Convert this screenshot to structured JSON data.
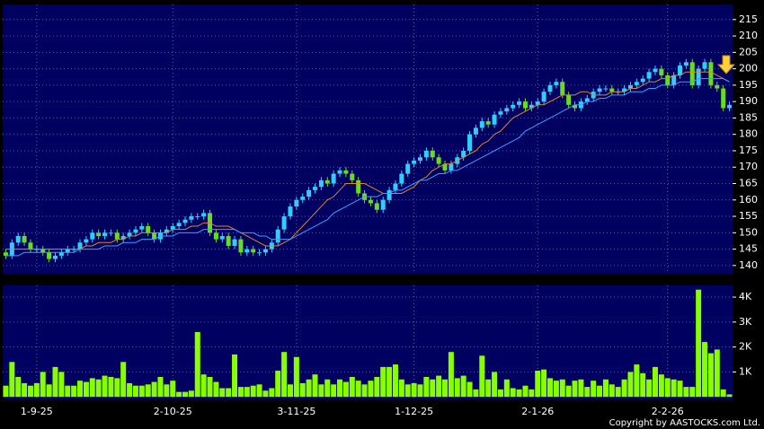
{
  "chart_data": {
    "type": "candlestick",
    "categories": [
      null,
      null,
      null,
      null,
      null,
      "1-9-25",
      null,
      null,
      null,
      null,
      null,
      null,
      null,
      null,
      null,
      null,
      null,
      null,
      null,
      null,
      null,
      null,
      null,
      null,
      null,
      null,
      null,
      "2-10-25",
      null,
      null,
      null,
      null,
      null,
      null,
      null,
      null,
      null,
      null,
      null,
      null,
      null,
      null,
      null,
      null,
      null,
      null,
      null,
      "3-11-25",
      null,
      null,
      null,
      null,
      null,
      null,
      null,
      null,
      null,
      null,
      null,
      null,
      null,
      null,
      null,
      null,
      null,
      null,
      "1-12-25",
      null,
      null,
      null,
      null,
      null,
      null,
      null,
      null,
      null,
      null,
      null,
      null,
      null,
      null,
      null,
      null,
      null,
      null,
      null,
      "2-1-26",
      null,
      null,
      null,
      null,
      null,
      null,
      null,
      null,
      null,
      null,
      null,
      null,
      null,
      null,
      null,
      null,
      null,
      null,
      null,
      null,
      "2-2-26",
      null,
      null,
      null,
      null,
      null,
      null,
      null,
      null,
      null,
      null
    ],
    "open": [
      144,
      143,
      147,
      149,
      147,
      145,
      145,
      144,
      142,
      143,
      144,
      145,
      145,
      147,
      148,
      150,
      149,
      150,
      150,
      148,
      149,
      150,
      151,
      152,
      150,
      148,
      150,
      151,
      152,
      153,
      154,
      155,
      155,
      156,
      150,
      148,
      149,
      146,
      148,
      144,
      145,
      144,
      144,
      145,
      147,
      151,
      155,
      158,
      160,
      161,
      163,
      164,
      166,
      165,
      168,
      169,
      168,
      166,
      162,
      160,
      159,
      157,
      160,
      163,
      165,
      168,
      171,
      172,
      173,
      175,
      173,
      171,
      169,
      171,
      173,
      175,
      180,
      182,
      184,
      183,
      186,
      187,
      188,
      189,
      190,
      188,
      189,
      190,
      193,
      195,
      196,
      192,
      189,
      188,
      190,
      191,
      193,
      194,
      194,
      193,
      193,
      194,
      195,
      196,
      197,
      199,
      200,
      198,
      195,
      198,
      201,
      202,
      195,
      200,
      202,
      195,
      194,
      188
    ],
    "high": [
      145,
      148,
      150,
      150,
      148,
      146,
      146,
      145,
      144,
      145,
      146,
      146,
      148,
      149,
      151,
      151,
      151,
      151,
      151,
      150,
      151,
      152,
      153,
      153,
      151,
      151,
      152,
      153,
      154,
      155,
      156,
      156,
      157,
      157,
      151,
      150,
      150,
      149,
      149,
      146,
      146,
      145,
      146,
      148,
      152,
      156,
      159,
      161,
      162,
      164,
      165,
      167,
      167,
      169,
      170,
      170,
      169,
      167,
      163,
      161,
      160,
      161,
      164,
      166,
      169,
      172,
      173,
      174,
      176,
      176,
      174,
      172,
      172,
      174,
      176,
      181,
      183,
      185,
      185,
      187,
      188,
      189,
      190,
      191,
      191,
      190,
      191,
      194,
      196,
      197,
      197,
      193,
      190,
      191,
      192,
      194,
      195,
      195,
      195,
      194,
      195,
      196,
      197,
      198,
      200,
      201,
      201,
      199,
      199,
      202,
      203,
      203,
      201,
      203,
      203,
      196,
      195,
      190
    ],
    "low": [
      142,
      142,
      146,
      146,
      144,
      144,
      143,
      141,
      141,
      142,
      143,
      144,
      144,
      146,
      147,
      148,
      148,
      149,
      147,
      147,
      148,
      149,
      150,
      149,
      147,
      147,
      149,
      150,
      151,
      152,
      153,
      154,
      154,
      149,
      147,
      147,
      145,
      145,
      143,
      143,
      143,
      143,
      143,
      144,
      146,
      150,
      154,
      157,
      159,
      160,
      162,
      163,
      164,
      164,
      167,
      167,
      165,
      161,
      159,
      158,
      156,
      156,
      159,
      162,
      164,
      167,
      170,
      171,
      172,
      172,
      170,
      168,
      168,
      170,
      172,
      174,
      179,
      181,
      182,
      182,
      185,
      186,
      187,
      188,
      187,
      187,
      188,
      189,
      192,
      194,
      191,
      188,
      187,
      187,
      189,
      190,
      192,
      193,
      192,
      192,
      192,
      193,
      194,
      195,
      196,
      198,
      197,
      194,
      194,
      197,
      200,
      194,
      194,
      199,
      194,
      193,
      187,
      187
    ],
    "close": [
      143,
      147,
      149,
      147,
      145,
      145,
      144,
      142,
      143,
      144,
      145,
      145,
      147,
      148,
      150,
      149,
      150,
      150,
      148,
      149,
      150,
      151,
      152,
      150,
      148,
      150,
      151,
      152,
      153,
      154,
      155,
      155,
      156,
      150,
      148,
      149,
      146,
      148,
      144,
      145,
      144,
      144,
      145,
      147,
      151,
      155,
      158,
      160,
      161,
      163,
      164,
      166,
      165,
      168,
      169,
      168,
      166,
      162,
      160,
      159,
      157,
      160,
      163,
      165,
      168,
      171,
      172,
      173,
      175,
      173,
      171,
      169,
      171,
      173,
      175,
      180,
      182,
      184,
      183,
      186,
      187,
      188,
      189,
      190,
      188,
      189,
      190,
      193,
      195,
      196,
      192,
      189,
      188,
      190,
      191,
      193,
      194,
      194,
      193,
      193,
      194,
      195,
      196,
      197,
      199,
      200,
      198,
      195,
      198,
      201,
      202,
      195,
      200,
      202,
      195,
      194,
      188,
      189
    ],
    "up_color": "#33ccff",
    "down_color": "#66dd22",
    "series": [
      {
        "color": "#e0842a",
        "values": [
          145,
          145,
          145,
          145,
          145,
          145,
          145,
          145,
          145,
          145,
          145,
          145,
          145,
          146,
          146,
          147,
          147,
          147,
          148,
          148,
          149,
          149,
          150,
          150,
          150,
          150,
          150,
          151,
          151,
          151,
          152,
          152,
          153,
          153,
          152,
          152,
          152,
          151,
          150,
          149,
          148,
          147,
          146,
          146,
          146,
          147,
          148,
          150,
          152,
          154,
          156,
          158,
          160,
          161,
          163,
          165,
          165,
          165,
          165,
          164,
          163,
          162,
          162,
          162,
          162,
          163,
          164,
          166,
          167,
          169,
          170,
          171,
          171,
          172,
          173,
          174,
          175,
          177,
          178,
          180,
          181,
          183,
          185,
          186,
          187,
          188,
          189,
          189,
          190,
          191,
          192,
          192,
          192,
          193,
          193,
          192,
          192,
          192,
          193,
          193,
          193,
          194,
          194,
          195,
          196,
          196,
          197,
          197,
          198,
          198,
          199,
          199,
          199,
          199,
          199,
          198,
          197,
          196
        ]
      },
      {
        "color": "#3aa0ff",
        "values": [
          143,
          143,
          143,
          144,
          144,
          144,
          144,
          144,
          144,
          144,
          144,
          144,
          145,
          145,
          145,
          145,
          146,
          146,
          146,
          147,
          147,
          147,
          148,
          148,
          148,
          149,
          149,
          149,
          150,
          150,
          150,
          150,
          151,
          151,
          151,
          151,
          151,
          151,
          150,
          150,
          150,
          149,
          149,
          148,
          148,
          148,
          148,
          149,
          150,
          151,
          152,
          153,
          154,
          156,
          157,
          158,
          159,
          160,
          161,
          161,
          161,
          162,
          162,
          163,
          163,
          164,
          165,
          166,
          166,
          167,
          168,
          168,
          169,
          169,
          170,
          171,
          172,
          173,
          174,
          175,
          176,
          177,
          178,
          179,
          181,
          182,
          183,
          184,
          185,
          186,
          187,
          188,
          189,
          189,
          190,
          190,
          191,
          191,
          192,
          192,
          192,
          193,
          193,
          193,
          194,
          194,
          195,
          195,
          195,
          196,
          196,
          196,
          197,
          197,
          197,
          197,
          197,
          196
        ]
      }
    ],
    "ylim": [
      137.5,
      219.6
    ],
    "yticks": [
      140,
      145,
      150,
      155,
      160,
      165,
      170,
      175,
      180,
      185,
      190,
      195,
      200,
      205,
      210,
      215
    ],
    "grid": true,
    "volume": {
      "type": "bar",
      "color": "#88ff00",
      "values": [
        450,
        1400,
        800,
        550,
        450,
        550,
        1000,
        500,
        1200,
        1000,
        450,
        450,
        650,
        600,
        750,
        700,
        850,
        800,
        750,
        1400,
        550,
        450,
        450,
        500,
        600,
        800,
        500,
        650,
        200,
        200,
        250,
        2600,
        900,
        800,
        600,
        350,
        350,
        1700,
        400,
        400,
        450,
        500,
        250,
        350,
        1050,
        1800,
        500,
        1600,
        550,
        700,
        900,
        500,
        700,
        500,
        700,
        600,
        800,
        650,
        500,
        650,
        800,
        1200,
        1200,
        1300,
        700,
        500,
        550,
        500,
        800,
        700,
        850,
        700,
        1800,
        750,
        850,
        600,
        300,
        1650,
        700,
        1000,
        300,
        700,
        350,
        300,
        450,
        300,
        1050,
        1100,
        750,
        650,
        700,
        450,
        650,
        700,
        400,
        650,
        450,
        700,
        500,
        400,
        700,
        1000,
        1300,
        950,
        700,
        1200,
        900,
        750,
        700,
        650,
        400,
        400,
        4300,
        2200,
        1750,
        1900,
        300,
        100
      ],
      "ylim": [
        -100,
        4470
      ],
      "yticks": [
        {
          "value": 1000,
          "label": "1K"
        },
        {
          "value": 2000,
          "label": "2K"
        },
        {
          "value": 3000,
          "label": "3K"
        },
        {
          "value": 4000,
          "label": "4K"
        }
      ]
    },
    "copyright": "Copyright by AASTOCKS.com Ltd."
  }
}
